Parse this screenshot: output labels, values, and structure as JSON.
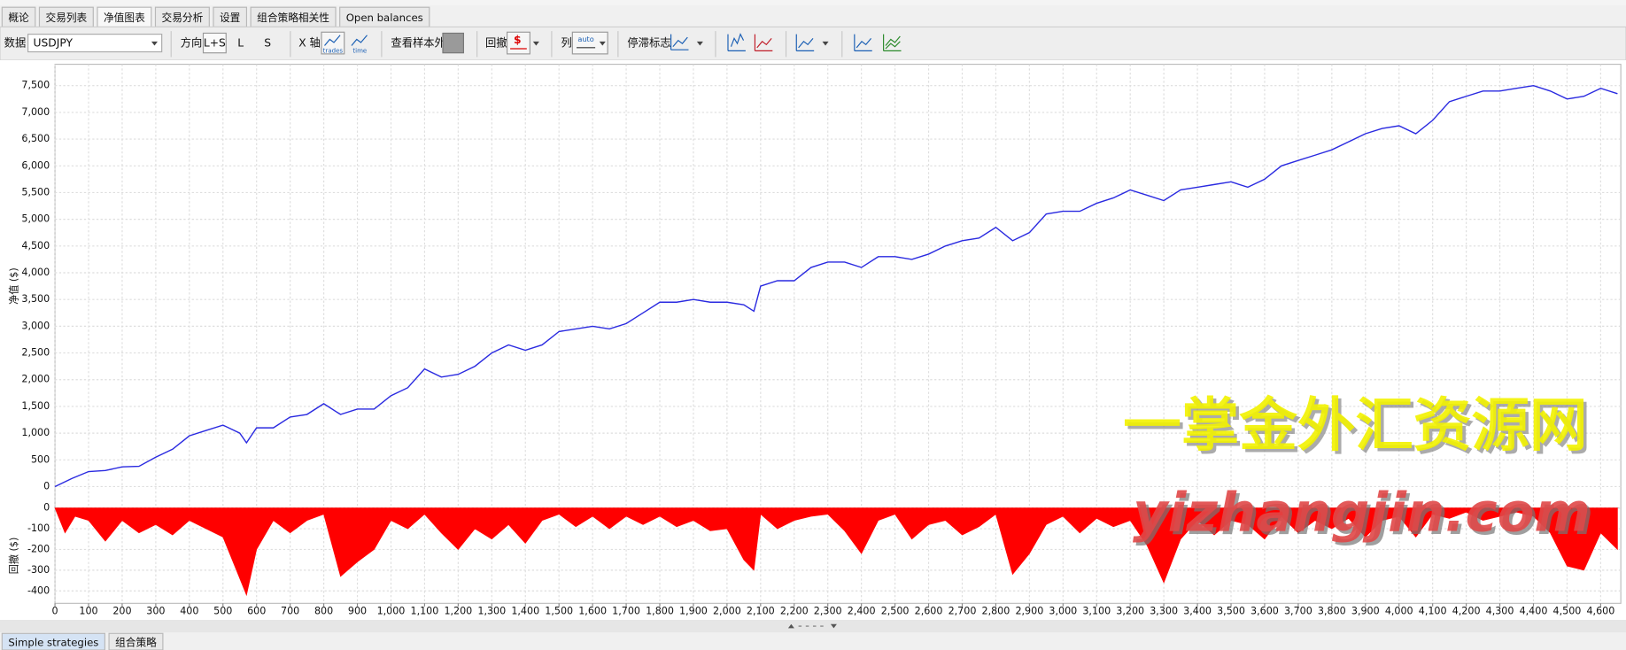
{
  "tabs": [
    {
      "label": "概论"
    },
    {
      "label": "交易列表"
    },
    {
      "label": "净值图表",
      "selected": true
    },
    {
      "label": "交易分析"
    },
    {
      "label": "设置"
    },
    {
      "label": "组合策略相关性"
    },
    {
      "label": "Open balances"
    }
  ],
  "toolbar": {
    "data_label": "数据",
    "symbol": "USDJPY",
    "direction_label": "方向",
    "direction_options": [
      "L+S",
      "L",
      "S"
    ],
    "x_axis_label": "X 轴",
    "x_axis_options": [
      "trades",
      "time"
    ],
    "out_of_sample_label": "查看样本外",
    "drawdown_label": "回撤",
    "drawdown_icon": "$",
    "columns_label": "列",
    "columns_option": "auto",
    "stagnation_label": "停滞标志"
  },
  "chart_data": [
    {
      "type": "line",
      "ylabel": "净值 ($)",
      "color": "#2a2ae0",
      "grid": true,
      "xlim": [
        0,
        4660
      ],
      "ylim": [
        -400,
        7900
      ],
      "yticks": [
        0,
        500,
        {
          "value": 1000,
          "label": "1,000"
        },
        {
          "value": 1500,
          "label": "1,500"
        },
        {
          "value": 2000,
          "label": "2,000"
        },
        {
          "value": 2500,
          "label": "2,500"
        },
        {
          "value": 3000,
          "label": "3,000"
        },
        {
          "value": 3500,
          "label": "3,500"
        },
        {
          "value": 4000,
          "label": "4,000"
        },
        {
          "value": 4500,
          "label": "4,500"
        },
        {
          "value": 5000,
          "label": "5,000"
        },
        {
          "value": 5500,
          "label": "5,500"
        },
        {
          "value": 6000,
          "label": "6,000"
        },
        {
          "value": 6500,
          "label": "6,500"
        },
        {
          "value": 7000,
          "label": "7,000"
        },
        {
          "value": 7500,
          "label": "7,500"
        }
      ],
      "x": [
        0,
        50,
        100,
        150,
        200,
        250,
        300,
        350,
        400,
        450,
        500,
        550,
        570,
        600,
        650,
        700,
        750,
        800,
        850,
        900,
        950,
        1000,
        1050,
        1100,
        1150,
        1200,
        1250,
        1300,
        1350,
        1400,
        1450,
        1500,
        1550,
        1600,
        1650,
        1700,
        1750,
        1800,
        1850,
        1900,
        1950,
        2000,
        2050,
        2080,
        2100,
        2150,
        2200,
        2250,
        2300,
        2350,
        2400,
        2450,
        2500,
        2550,
        2600,
        2650,
        2700,
        2750,
        2800,
        2850,
        2900,
        2950,
        3000,
        3050,
        3100,
        3150,
        3200,
        3250,
        3300,
        3350,
        3400,
        3450,
        3500,
        3550,
        3600,
        3650,
        3700,
        3750,
        3800,
        3850,
        3900,
        3950,
        4000,
        4050,
        4100,
        4150,
        4200,
        4250,
        4300,
        4350,
        4400,
        4450,
        4500,
        4550,
        4600,
        4650
      ],
      "values": [
        0,
        150,
        280,
        300,
        370,
        380,
        550,
        700,
        950,
        1050,
        1150,
        1000,
        820,
        1100,
        1100,
        1300,
        1350,
        1550,
        1350,
        1450,
        1450,
        1700,
        1850,
        2200,
        2050,
        2100,
        2250,
        2500,
        2650,
        2550,
        2650,
        2900,
        2950,
        3000,
        2950,
        3050,
        3250,
        3450,
        3450,
        3500,
        3450,
        3450,
        3400,
        3280,
        3750,
        3850,
        3850,
        4100,
        4200,
        4200,
        4100,
        4300,
        4300,
        4250,
        4350,
        4500,
        4600,
        4650,
        4850,
        4600,
        4750,
        5100,
        5150,
        5150,
        5300,
        5400,
        5550,
        5450,
        5350,
        5550,
        5600,
        5650,
        5700,
        5600,
        5750,
        6000,
        6100,
        6200,
        6300,
        6450,
        6600,
        6700,
        6750,
        6600,
        6850,
        7200,
        7300,
        7400,
        7400,
        7450,
        7500,
        7400,
        7250,
        7300,
        7450,
        7350
      ]
    },
    {
      "type": "area",
      "ylabel": "回撤 ($)",
      "color": "#ff0000",
      "grid": true,
      "xlim": [
        0,
        4660
      ],
      "ylim": [
        -460,
        0
      ],
      "yticks": [
        0,
        -100,
        -200,
        -300,
        -400
      ],
      "xticks": [
        0,
        100,
        200,
        300,
        400,
        500,
        600,
        700,
        800,
        900,
        {
          "value": 1000,
          "label": "1,000"
        },
        {
          "value": 1100,
          "label": "1,100"
        },
        {
          "value": 1200,
          "label": "1,200"
        },
        {
          "value": 1300,
          "label": "1,300"
        },
        {
          "value": 1400,
          "label": "1,400"
        },
        {
          "value": 1500,
          "label": "1,500"
        },
        {
          "value": 1600,
          "label": "1,600"
        },
        {
          "value": 1700,
          "label": "1,700"
        },
        {
          "value": 1800,
          "label": "1,800"
        },
        {
          "value": 1900,
          "label": "1,900"
        },
        {
          "value": 2000,
          "label": "2,000"
        },
        {
          "value": 2100,
          "label": "2,100"
        },
        {
          "value": 2200,
          "label": "2,200"
        },
        {
          "value": 2300,
          "label": "2,300"
        },
        {
          "value": 2400,
          "label": "2,400"
        },
        {
          "value": 2500,
          "label": "2,500"
        },
        {
          "value": 2600,
          "label": "2,600"
        },
        {
          "value": 2700,
          "label": "2,700"
        },
        {
          "value": 2800,
          "label": "2,800"
        },
        {
          "value": 2900,
          "label": "2,900"
        },
        {
          "value": 3000,
          "label": "3,000"
        },
        {
          "value": 3100,
          "label": "3,100"
        },
        {
          "value": 3200,
          "label": "3,200"
        },
        {
          "value": 3300,
          "label": "3,300"
        },
        {
          "value": 3400,
          "label": "3,400"
        },
        {
          "value": 3500,
          "label": "3,500"
        },
        {
          "value": 3600,
          "label": "3,600"
        },
        {
          "value": 3700,
          "label": "3,700"
        },
        {
          "value": 3800,
          "label": "3,800"
        },
        {
          "value": 3900,
          "label": "3,900"
        },
        {
          "value": 4000,
          "label": "4,000"
        },
        {
          "value": 4100,
          "label": "4,100"
        },
        {
          "value": 4200,
          "label": "4,200"
        },
        {
          "value": 4300,
          "label": "4,300"
        },
        {
          "value": 4400,
          "label": "4,400"
        },
        {
          "value": 4500,
          "label": "4,500"
        },
        {
          "value": 4600,
          "label": "4,600"
        }
      ],
      "x": [
        0,
        30,
        60,
        100,
        150,
        200,
        250,
        300,
        350,
        400,
        450,
        500,
        540,
        570,
        600,
        650,
        700,
        750,
        800,
        850,
        900,
        950,
        1000,
        1050,
        1100,
        1150,
        1200,
        1250,
        1300,
        1350,
        1400,
        1450,
        1500,
        1550,
        1600,
        1650,
        1700,
        1750,
        1800,
        1850,
        1900,
        1950,
        2000,
        2050,
        2080,
        2100,
        2150,
        2200,
        2250,
        2300,
        2350,
        2400,
        2450,
        2500,
        2550,
        2600,
        2650,
        2700,
        2750,
        2800,
        2850,
        2900,
        2950,
        3000,
        3050,
        3100,
        3150,
        3200,
        3250,
        3300,
        3350,
        3400,
        3450,
        3500,
        3550,
        3600,
        3650,
        3700,
        3750,
        3800,
        3850,
        3900,
        3950,
        4000,
        4050,
        4100,
        4150,
        4200,
        4250,
        4300,
        4350,
        4400,
        4450,
        4500,
        4550,
        4600,
        4650
      ],
      "values": [
        0,
        -120,
        -40,
        -60,
        -160,
        -60,
        -120,
        -80,
        -130,
        -60,
        -100,
        -140,
        -300,
        -420,
        -200,
        -60,
        -120,
        -60,
        -30,
        -330,
        -260,
        -200,
        -60,
        -100,
        -30,
        -120,
        -200,
        -100,
        -150,
        -80,
        -170,
        -60,
        -30,
        -90,
        -40,
        -100,
        -40,
        -80,
        -40,
        -90,
        -60,
        -110,
        -100,
        -250,
        -300,
        -30,
        -100,
        -60,
        -40,
        -30,
        -110,
        -220,
        -60,
        -30,
        -150,
        -80,
        -60,
        -130,
        -90,
        -30,
        -320,
        -220,
        -80,
        -40,
        -120,
        -50,
        -90,
        -60,
        -180,
        -360,
        -150,
        -60,
        -130,
        -60,
        -80,
        -150,
        -40,
        -120,
        -60,
        -100,
        -50,
        -140,
        -60,
        -40,
        -140,
        -30,
        -50,
        -20,
        -60,
        -40,
        -20,
        -40,
        -120,
        -280,
        -300,
        -120,
        -200
      ]
    }
  ],
  "watermark": [
    "一掌金外汇资源网",
    "yizhangjin.com"
  ],
  "bottom_tabs": [
    {
      "label": "Simple strategies",
      "selected": true
    },
    {
      "label": "组合策略"
    }
  ]
}
